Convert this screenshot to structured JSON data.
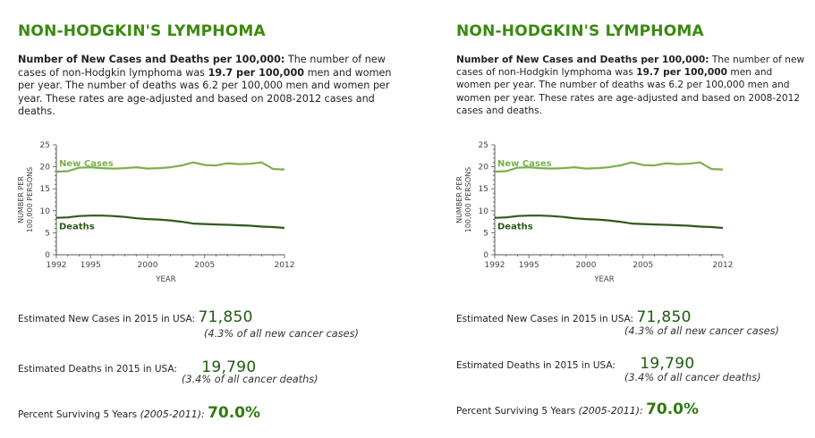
{
  "panels": [
    {
      "title": "NON-HODGKIN'S LYMPHOMA",
      "desc_bold": "Number of New Cases and Deaths per 100,000:",
      "desc_text1": " The number of new cases of non-Hodgkin lymphoma was ",
      "desc_bold2": "19.7 per 100,000",
      "desc_text2": " men and women per year. The number of deaths was 6.2 per 100,000 men and women per year. These rates are age-adjusted and based on 2008-2012 cases and deaths.",
      "new_cases_label": "Estimated New Cases in 2015 in USA:",
      "new_cases_value": "71,850",
      "new_cases_note": "(4.3% of all new cancer cases)",
      "deaths_label": "Estimated Deaths in 2015 in USA:",
      "deaths_value": "19,790",
      "deaths_note": "(3.4% of all cancer deaths)",
      "surv_label": "Percent Surviving  5 Years",
      "surv_period": "(2005-2011):",
      "surv_value": "70.0%"
    },
    {
      "title": "NON-HODGKIN'S LYMPHOMA",
      "desc_bold": "Number of New Cases and Deaths per 100,000:",
      "desc_text1": " The number of new cases of non-Hodgkin lymphoma was ",
      "desc_bold2": "19.7 per 100,000",
      "desc_text2": " men and women per year. The number of deaths was 6.2 per 100,000 men and women per year. These rates are age-adjusted and based on 2008-2012 cases and deaths.",
      "new_cases_label": "Estimated New Cases in 2015 in USA:",
      "new_cases_value": "71,850",
      "new_cases_note": "(4.3% of all new cancer cases)",
      "deaths_label": "Estimated Deaths in 2015 in USA:",
      "deaths_value": "19,790",
      "deaths_note": "(3.4% of all cancer deaths)",
      "surv_label": "Percent Surviving  5 Years",
      "surv_period": "(2005-2011):",
      "surv_value": "70.0%"
    }
  ],
  "colors": {
    "title": "#3a8a10",
    "new_cases_line": "#7bb04a",
    "deaths_line": "#2e5a1a",
    "axis": "#555555"
  },
  "chart_data": [
    {
      "type": "line",
      "xlabel": "YEAR",
      "ylabel": "NUMBER PER 100,000 PERSONS",
      "xlim": [
        1992,
        2012
      ],
      "ylim": [
        0,
        25
      ],
      "xticks": [
        1992,
        1995,
        2000,
        2005,
        2012
      ],
      "yticks": [
        0,
        5,
        10,
        15,
        20,
        25
      ],
      "grid": false,
      "x": [
        1992,
        1993,
        1994,
        1995,
        1996,
        1997,
        1998,
        1999,
        2000,
        2001,
        2002,
        2003,
        2004,
        2005,
        2006,
        2007,
        2008,
        2009,
        2010,
        2011,
        2012
      ],
      "series": [
        {
          "name": "New Cases",
          "values": [
            18.9,
            19.0,
            19.8,
            19.9,
            19.7,
            19.6,
            19.7,
            19.9,
            19.6,
            19.7,
            19.9,
            20.3,
            21.0,
            20.4,
            20.3,
            20.8,
            20.6,
            20.7,
            21.0,
            19.5,
            19.4
          ]
        },
        {
          "name": "Deaths",
          "values": [
            8.4,
            8.5,
            8.8,
            8.9,
            8.9,
            8.8,
            8.6,
            8.3,
            8.1,
            8.0,
            7.8,
            7.5,
            7.1,
            7.0,
            6.9,
            6.8,
            6.7,
            6.6,
            6.4,
            6.3,
            6.1
          ]
        }
      ]
    },
    {
      "type": "line",
      "xlabel": "YEAR",
      "ylabel": "NUMBER PER 100,000 PERSONS",
      "xlim": [
        1992,
        2012
      ],
      "ylim": [
        0,
        25
      ],
      "xticks": [
        1992,
        1995,
        2000,
        2005,
        2012
      ],
      "yticks": [
        0,
        5,
        10,
        15,
        20,
        25
      ],
      "grid": false,
      "x": [
        1992,
        1993,
        1994,
        1995,
        1996,
        1997,
        1998,
        1999,
        2000,
        2001,
        2002,
        2003,
        2004,
        2005,
        2006,
        2007,
        2008,
        2009,
        2010,
        2011,
        2012
      ],
      "series": [
        {
          "name": "New Cases",
          "values": [
            18.9,
            19.0,
            19.8,
            19.9,
            19.7,
            19.6,
            19.7,
            19.9,
            19.6,
            19.7,
            19.9,
            20.3,
            21.0,
            20.4,
            20.3,
            20.8,
            20.6,
            20.7,
            21.0,
            19.5,
            19.4
          ]
        },
        {
          "name": "Deaths",
          "values": [
            8.4,
            8.5,
            8.8,
            8.9,
            8.9,
            8.8,
            8.6,
            8.3,
            8.1,
            8.0,
            7.8,
            7.5,
            7.1,
            7.0,
            6.9,
            6.8,
            6.7,
            6.6,
            6.4,
            6.3,
            6.1
          ]
        }
      ]
    }
  ]
}
